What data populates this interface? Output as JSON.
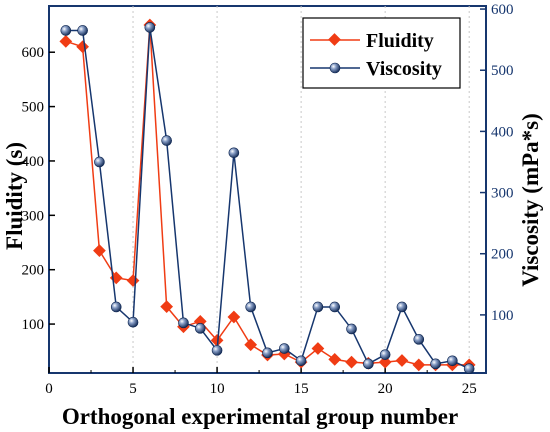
{
  "chart_data": {
    "type": "line",
    "xlabel": "Orthogonal experimental group number",
    "ylabel_left": "Fluidity (s)",
    "ylabel_right": "Viscosity (mPa*s)",
    "x": [
      1,
      2,
      3,
      4,
      5,
      6,
      7,
      8,
      9,
      10,
      11,
      12,
      13,
      14,
      15,
      16,
      17,
      18,
      19,
      20,
      21,
      22,
      23,
      24,
      25
    ],
    "xlim": [
      0,
      26
    ],
    "xticks": [
      0,
      5,
      10,
      15,
      20,
      25
    ],
    "ylim_left": [
      10,
      685
    ],
    "yticks_left": [
      100,
      200,
      300,
      400,
      500,
      600
    ],
    "ylim_right": [
      5,
      605
    ],
    "yticks_right": [
      100,
      200,
      300,
      400,
      500,
      600
    ],
    "grid": "vertical dotted at x ticks",
    "legend_position": "top-right",
    "series": [
      {
        "name": "Fluidity",
        "axis": "left",
        "color": "#f03c14",
        "marker": "diamond",
        "values": [
          620,
          610,
          235,
          185,
          180,
          650,
          132,
          95,
          105,
          70,
          113,
          62,
          43,
          45,
          30,
          55,
          35,
          30,
          28,
          30,
          33,
          25,
          25,
          25,
          25
        ]
      },
      {
        "name": "Viscosity",
        "axis": "right",
        "color": "#16366e",
        "marker": "sphere",
        "values": [
          565,
          565,
          350,
          113,
          88,
          570,
          385,
          87,
          78,
          42,
          365,
          113,
          38,
          45,
          25,
          113,
          113,
          77,
          20,
          35,
          113,
          60,
          20,
          25,
          12
        ]
      }
    ]
  }
}
